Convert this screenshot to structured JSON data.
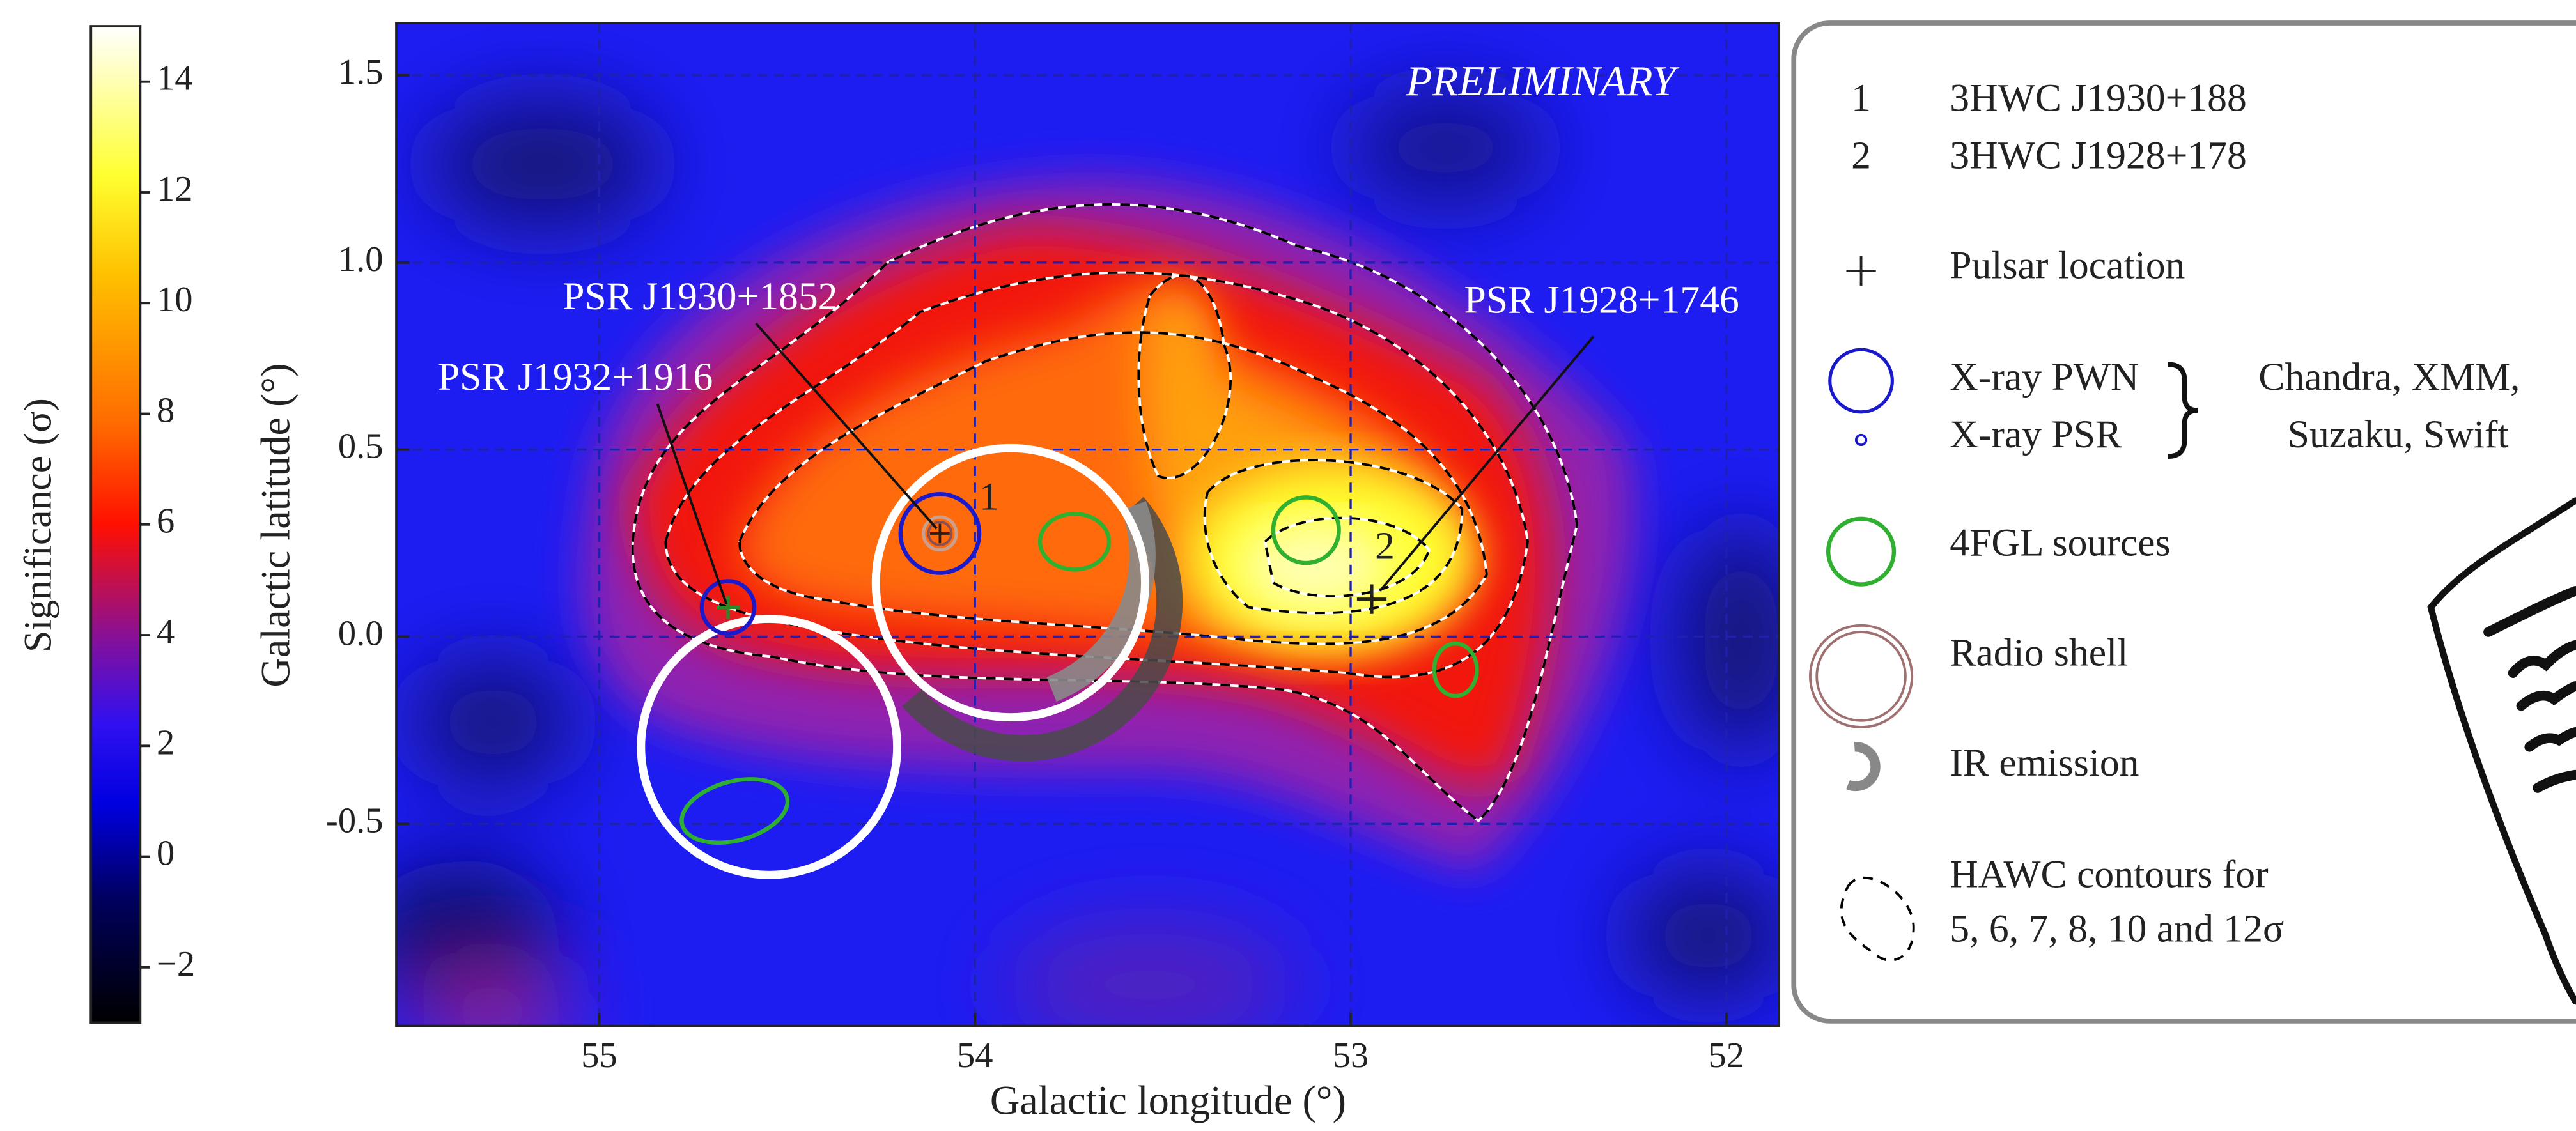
{
  "chart_data": {
    "type": "heatmap",
    "xlabel": "Galactic longitude (°)",
    "ylabel": "Galactic latitude (°)",
    "xlim": [
      55.54,
      51.86
    ],
    "xticks": [
      55,
      54,
      53,
      52
    ],
    "ylim": [
      -1.04,
      1.64
    ],
    "yticks": [
      -0.5,
      {
        "value": 0,
        "label": "0.0"
      },
      0.5,
      {
        "value": 1,
        "label": "1.0"
      },
      1.5
    ],
    "grid": true,
    "colorbar": {
      "label": "Significance (σ)",
      "lim": [
        -3,
        15
      ],
      "ticks": [
        {
          "value": -2,
          "label": "−2"
        },
        0,
        2,
        4,
        6,
        8,
        10,
        12,
        14
      ]
    },
    "annotations": {
      "watermark": "PRELIMINARY",
      "psr_1930": "PSR J1930+1852",
      "psr_1928": "PSR J1928+1746",
      "psr_1932": "PSR J1932+1916",
      "source_1": "1",
      "source_2": "2"
    },
    "legend": {
      "sources": [
        {
          "symbol": "1",
          "label": "3HWC J1930+188"
        },
        {
          "symbol": "2",
          "label": "3HWC J1928+178"
        }
      ],
      "pulsar": "Pulsar location",
      "pwn": "X-ray PWN",
      "psr": "X-ray PSR",
      "xray_note": [
        "Chandra, XMM,",
        "Suzaku, Swift"
      ],
      "fgl": "4FGL sources",
      "radio": "Radio shell",
      "ir": "IR emission",
      "contours": [
        "HAWC contours for",
        "5, 6, 7, 8, 10 and 12σ"
      ]
    }
  }
}
